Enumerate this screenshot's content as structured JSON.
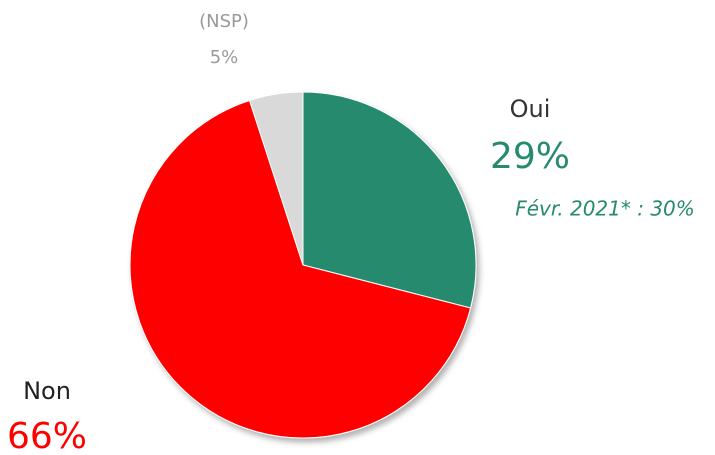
{
  "chart_data": {
    "type": "pie",
    "categories": [
      "Oui",
      "Non",
      "(NSP)"
    ],
    "values": [
      29,
      66,
      5
    ],
    "value_labels": [
      "29%",
      "66%",
      "5%"
    ],
    "colors": [
      "#268a6e",
      "#ff0000",
      "#d9d9d9"
    ],
    "annotations": [
      "Févr. 2021* : 30%"
    ]
  }
}
